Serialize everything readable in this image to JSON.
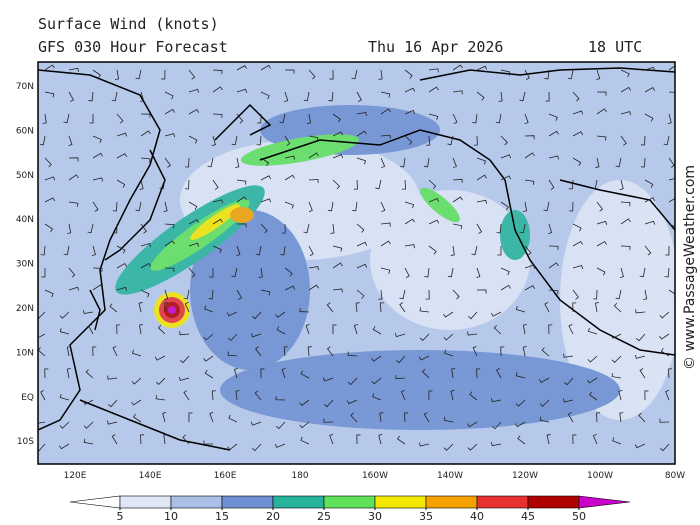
{
  "header": {
    "title": "Surface Wind (knots)",
    "subtitle": "GFS 030 Hour Forecast",
    "date": "Thu 16 Apr 2026",
    "time": "18 UTC"
  },
  "map": {
    "lat_labels": [
      "70N",
      "60N",
      "50N",
      "40N",
      "30N",
      "20N",
      "10N",
      "EQ",
      "10S"
    ],
    "lon_labels": [
      "120E",
      "140E",
      "160E",
      "180",
      "160W",
      "140W",
      "120W",
      "100W",
      "80W"
    ]
  },
  "colorbar": {
    "ticks": [
      5,
      10,
      15,
      20,
      25,
      30,
      35,
      40,
      45,
      50
    ],
    "colors": [
      "#ffffff",
      "#dfe7f6",
      "#a9bfe6",
      "#6e8fd2",
      "#27b39b",
      "#5fe15a",
      "#f5e800",
      "#f5a200",
      "#e83232",
      "#b00000",
      "#c800c8"
    ]
  },
  "credit": "© www.PassageWeather.com"
}
